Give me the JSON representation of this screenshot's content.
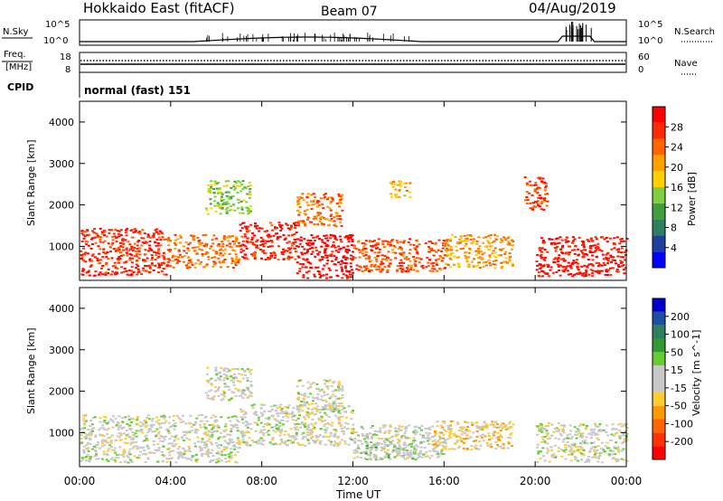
{
  "header": {
    "station": "Hokkaido East (fitACF)",
    "beam": "Beam 07",
    "date": "04/Aug/2019"
  },
  "nsky_panel": {
    "left_label": "N.Sky",
    "right_label": "N.Search",
    "top_tick": "10^5",
    "bottom_tick": "10^0"
  },
  "freq_panel": {
    "left_label_1": "Freq.",
    "left_label_2": "[MHz]",
    "left_top_tick": "18",
    "left_bottom_tick": "8",
    "right_top_tick": "60",
    "right_bottom_tick": "0",
    "right_label": "Nave"
  },
  "cpid_panel": {
    "label": "CPID",
    "value": "normal (fast) 151"
  },
  "xaxis": {
    "label": "Time UT",
    "ticks": [
      "00:00",
      "04:00",
      "08:00",
      "12:00",
      "16:00",
      "20:00",
      "00:00"
    ]
  },
  "colors": {
    "power_scale": [
      "#0000ff",
      "#1f3f9f",
      "#2e7f5f",
      "#3f9f3f",
      "#7fcf3f",
      "#ffcf00",
      "#ff9f00",
      "#ff6600",
      "#ff2a00",
      "#ff0000"
    ],
    "velocity_scale": [
      "#ff0000",
      "#ff3300",
      "#ff6600",
      "#ff9900",
      "#ffcc33",
      "#c8c8c8",
      "#c8c8c8",
      "#66cc33",
      "#339933",
      "#2e7f5f",
      "#1f4f9f",
      "#0000cc"
    ]
  },
  "chart_data": [
    {
      "type": "heatmap",
      "title": "Power",
      "xlabel": "Time UT",
      "ylabel": "Slant Range [km]",
      "xlim": [
        "00:00",
        "24:00"
      ],
      "ylim": [
        180,
        4500
      ],
      "yticks": [
        "1000",
        "2000",
        "3000",
        "4000"
      ],
      "colorbar_label": "Power [dB]",
      "colorbar_ticks": [
        "28",
        "24",
        "20",
        "16",
        "12",
        "8",
        "4"
      ],
      "colorbar_range": [
        0,
        30
      ],
      "regions": [
        {
          "t0": 0.0,
          "t1": 3.8,
          "r0": 300,
          "r1": 1450,
          "value": 26
        },
        {
          "t0": 3.8,
          "t1": 7.0,
          "r0": 500,
          "r1": 1300,
          "value": 22
        },
        {
          "t0": 7.0,
          "t1": 9.5,
          "r0": 700,
          "r1": 1600,
          "value": 27
        },
        {
          "t0": 9.5,
          "t1": 12.0,
          "r0": 250,
          "r1": 1300,
          "value": 29
        },
        {
          "t0": 12.0,
          "t1": 16.0,
          "r0": 400,
          "r1": 1200,
          "value": 24
        },
        {
          "t0": 16.0,
          "t1": 19.0,
          "r0": 500,
          "r1": 1300,
          "value": 20
        },
        {
          "t0": 20.0,
          "t1": 24.0,
          "r0": 300,
          "r1": 1250,
          "value": 28
        },
        {
          "t0": 5.5,
          "t1": 7.5,
          "r0": 1800,
          "r1": 2600,
          "value": 14
        },
        {
          "t0": 9.5,
          "t1": 11.5,
          "r0": 1500,
          "r1": 2300,
          "value": 22
        },
        {
          "t0": 13.5,
          "t1": 14.5,
          "r0": 2200,
          "r1": 2600,
          "value": 18
        },
        {
          "t0": 19.5,
          "t1": 20.5,
          "r0": 1900,
          "r1": 2700,
          "value": 25
        }
      ]
    },
    {
      "type": "heatmap",
      "title": "Velocity",
      "xlabel": "Time UT",
      "ylabel": "Slant Range [km]",
      "xlim": [
        "00:00",
        "24:00"
      ],
      "ylim": [
        180,
        4500
      ],
      "yticks": [
        "1000",
        "2000",
        "3000",
        "4000"
      ],
      "colorbar_label": "Velocity [m s^-1]",
      "colorbar_ticks": [
        "200",
        "100",
        "50",
        "15",
        "-15",
        "-50",
        "-100",
        "-200"
      ],
      "colorbar_range": [
        -250,
        250
      ],
      "regions": [
        {
          "t0": 0.0,
          "t1": 7.0,
          "r0": 300,
          "r1": 1450,
          "value": 0
        },
        {
          "t0": 7.0,
          "t1": 12.0,
          "r0": 700,
          "r1": 1700,
          "value": 0
        },
        {
          "t0": 12.0,
          "t1": 16.0,
          "r0": 400,
          "r1": 1200,
          "value": 5
        },
        {
          "t0": 12.5,
          "t1": 15.0,
          "r0": 350,
          "r1": 800,
          "value": 30
        },
        {
          "t0": 15.5,
          "t1": 19.0,
          "r0": 600,
          "r1": 1300,
          "value": -60
        },
        {
          "t0": 20.0,
          "t1": 24.0,
          "r0": 300,
          "r1": 1250,
          "value": 0
        },
        {
          "t0": 5.5,
          "t1": 7.5,
          "r0": 1800,
          "r1": 2600,
          "value": 0
        },
        {
          "t0": 9.5,
          "t1": 11.5,
          "r0": 1500,
          "r1": 2300,
          "value": 0
        }
      ]
    }
  ]
}
